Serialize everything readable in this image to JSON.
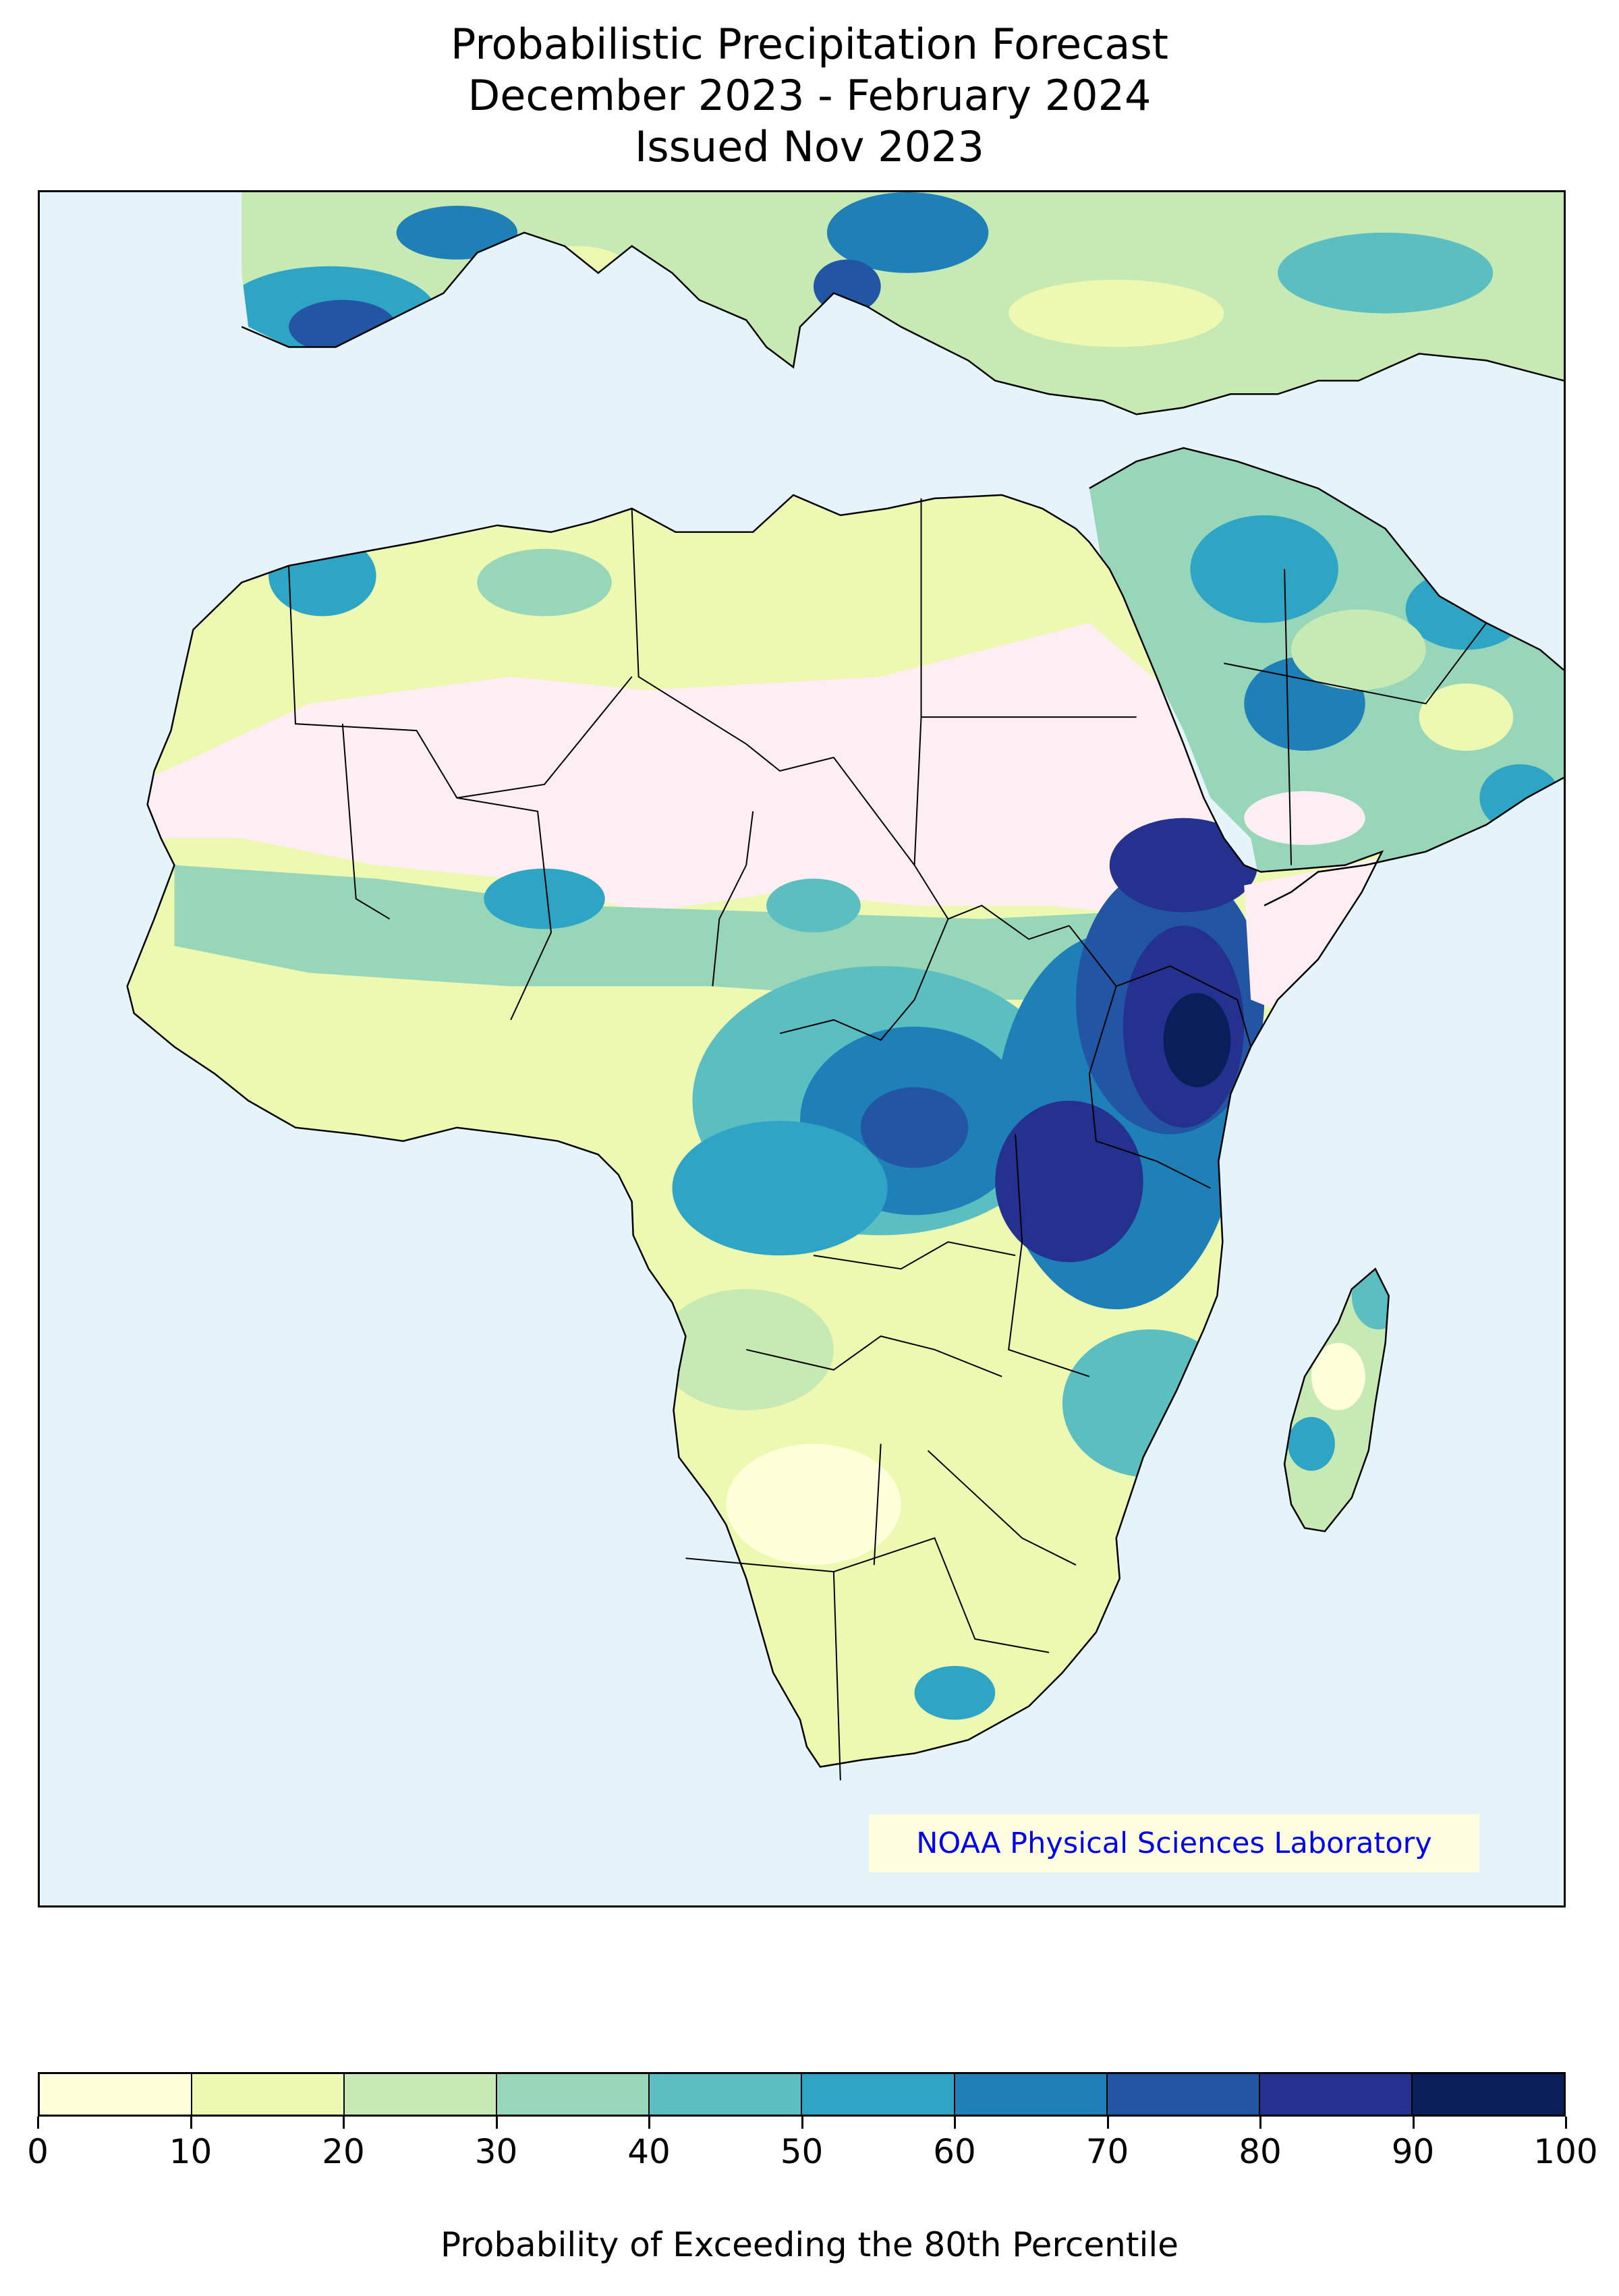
{
  "title": {
    "line1": "Probabilistic Precipitation Forecast",
    "line2": "December 2023 - February 2024",
    "line3": "Issued Nov 2023"
  },
  "credit": "NOAA Physical Sciences Laboratory",
  "colorbar": {
    "label": "Probability of Exceeding the 80th Percentile",
    "ticks": [
      "0",
      "10",
      "20",
      "30",
      "40",
      "50",
      "60",
      "70",
      "80",
      "90",
      "100"
    ],
    "bins": [
      {
        "range": "0-10",
        "color": "#ffffd9"
      },
      {
        "range": "10-20",
        "color": "#edf8b1"
      },
      {
        "range": "20-30",
        "color": "#c7e9b4"
      },
      {
        "range": "30-40",
        "color": "#97d6b9"
      },
      {
        "range": "40-50",
        "color": "#5bbec1"
      },
      {
        "range": "50-60",
        "color": "#2fa5c6"
      },
      {
        "range": "60-70",
        "color": "#1f80b8"
      },
      {
        "range": "70-80",
        "color": "#2256a4"
      },
      {
        "range": "80-90",
        "color": "#24318f"
      },
      {
        "range": "90-100",
        "color": "#0a1e5a"
      }
    ]
  },
  "map": {
    "ocean_color": "#e5f3fa",
    "dry_season_mask_color": "#fdeef4",
    "border_color": "#000000"
  }
}
